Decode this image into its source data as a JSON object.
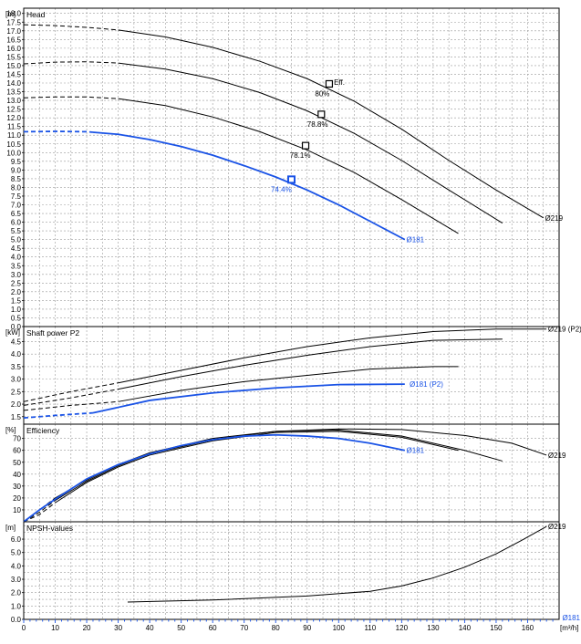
{
  "colors": {
    "curve": "#000000",
    "highlight": "#1a53e6",
    "title": "#ff0000",
    "grid": "#9a9a9a"
  },
  "chart_data": {
    "type": "line",
    "title": "",
    "x_axis": {
      "unit": "[m³/h]",
      "range": [
        0,
        170
      ],
      "ticks": [
        "0",
        "10",
        "20",
        "30",
        "40",
        "50",
        "60",
        "70",
        "80",
        "90",
        "100",
        "110",
        "120",
        "130",
        "140",
        "150",
        "160"
      ]
    },
    "panels": [
      {
        "id": "head",
        "label": "Head",
        "unit": "[m]",
        "ylim": [
          0,
          18.3
        ],
        "y_ticks": [
          "0.0",
          "0.5",
          "1.0",
          "1.5",
          "2.0",
          "2.5",
          "3.0",
          "3.5",
          "4.0",
          "4.5",
          "5.0",
          "5.5",
          "6.0",
          "6.5",
          "7.0",
          "7.5",
          "8.0",
          "8.5",
          "9.0",
          "9.5",
          "10.0",
          "10.5",
          "11.0",
          "11.5",
          "12.0",
          "12.5",
          "13.0",
          "13.5",
          "14.0",
          "14.5",
          "15.0",
          "15.5",
          "16.0",
          "16.5",
          "17.0",
          "17.5",
          "18.0"
        ],
        "series": [
          {
            "name": "Ø219",
            "highlight": false,
            "dashed_until": 30,
            "x": [
              0,
              10,
              20,
              30,
              45,
              60,
              75,
              90,
              105,
              120,
              135,
              150,
              165
            ],
            "y": [
              17.35,
              17.3,
              17.2,
              17.05,
              16.65,
              16.05,
              15.25,
              14.25,
              12.95,
              11.35,
              9.55,
              7.85,
              6.25
            ]
          },
          {
            "name": "",
            "highlight": false,
            "dashed_until": 30,
            "x": [
              0,
              10,
              20,
              30,
              45,
              60,
              75,
              90,
              105,
              120,
              135,
              152
            ],
            "y": [
              15.1,
              15.2,
              15.22,
              15.15,
              14.8,
              14.25,
              13.45,
              12.4,
              11.1,
              9.55,
              7.85,
              5.95
            ]
          },
          {
            "name": "",
            "highlight": false,
            "dashed_until": 30,
            "x": [
              0,
              10,
              20,
              30,
              45,
              60,
              75,
              90,
              105,
              120,
              138
            ],
            "y": [
              13.15,
              13.2,
              13.2,
              13.1,
              12.7,
              12.05,
              11.2,
              10.15,
              8.85,
              7.3,
              5.35
            ]
          },
          {
            "name": "Ø181",
            "highlight": true,
            "dashed_until": 22,
            "x": [
              0,
              10,
              20,
              30,
              40,
              50,
              60,
              70,
              80,
              90,
              100,
              110,
              121
            ],
            "y": [
              11.2,
              11.22,
              11.2,
              11.05,
              10.75,
              10.35,
              9.85,
              9.25,
              8.6,
              7.85,
              7.0,
              6.05,
              5.0
            ]
          }
        ],
        "markers": [
          {
            "x": 97,
            "y": 13.95,
            "highlight": false
          },
          {
            "x": 94.5,
            "y": 12.2,
            "highlight": false
          },
          {
            "x": 89.5,
            "y": 10.4,
            "highlight": false
          },
          {
            "x": 85,
            "y": 8.45,
            "highlight": true
          }
        ],
        "annotations": [
          {
            "text": "Eff.",
            "x": 98.5,
            "y": 14.05,
            "highlight": false
          },
          {
            "text": "80%",
            "x": 92.5,
            "y": 13.4,
            "highlight": false
          },
          {
            "text": "78.8%",
            "x": 90,
            "y": 11.65,
            "highlight": false
          },
          {
            "text": "78.1%",
            "x": 84.5,
            "y": 9.85,
            "highlight": false
          },
          {
            "text": "74.4%",
            "x": 78.5,
            "y": 7.9,
            "highlight": true
          },
          {
            "text": "Ø219",
            "x": 165.5,
            "y": 6.25,
            "highlight": false
          },
          {
            "text": "Ø181",
            "x": 121.5,
            "y": 5.0,
            "highlight": true
          }
        ]
      },
      {
        "id": "power",
        "label": "Shaft power P2",
        "unit": "[kW]",
        "ylim": [
          1.2,
          5.1
        ],
        "y_ticks": [
          "1.5",
          "2.0",
          "2.5",
          "3.0",
          "3.5",
          "4.0",
          "4.5"
        ],
        "series": [
          {
            "name": "Ø219 (P2)",
            "highlight": false,
            "dashed_until": 30,
            "x": [
              0,
              15,
              30,
              50,
              70,
              90,
              110,
              130,
              150,
              166
            ],
            "y": [
              2.1,
              2.5,
              2.85,
              3.35,
              3.85,
              4.3,
              4.65,
              4.9,
              5.0,
              5.0
            ]
          },
          {
            "name": "",
            "highlight": false,
            "dashed_until": 30,
            "x": [
              0,
              15,
              30,
              50,
              70,
              90,
              110,
              130,
              152
            ],
            "y": [
              1.95,
              2.25,
              2.6,
              3.1,
              3.55,
              3.95,
              4.3,
              4.55,
              4.6
            ]
          },
          {
            "name": "",
            "highlight": false,
            "dashed_until": 30,
            "x": [
              0,
              15,
              30,
              50,
              70,
              90,
              110,
              130,
              138
            ],
            "y": [
              1.75,
              1.95,
              2.1,
              2.55,
              2.9,
              3.15,
              3.4,
              3.5,
              3.5
            ]
          },
          {
            "name": "Ø181 (P2)",
            "highlight": true,
            "dashed_until": 22,
            "x": [
              0,
              10,
              22,
              40,
              60,
              80,
              100,
              121
            ],
            "y": [
              1.45,
              1.55,
              1.65,
              2.15,
              2.45,
              2.65,
              2.78,
              2.8
            ]
          }
        ],
        "annotations": [
          {
            "text": "Ø219 (P2)",
            "x": 166.5,
            "y": 5.0,
            "highlight": false
          },
          {
            "text": "Ø181 (P2)",
            "x": 122.5,
            "y": 2.8,
            "highlight": true
          }
        ]
      },
      {
        "id": "efficiency",
        "label": "Efficiency",
        "unit": "[%]",
        "ylim": [
          0,
          82
        ],
        "y_ticks": [
          "10",
          "20",
          "30",
          "40",
          "50",
          "60",
          "70"
        ],
        "series": [
          {
            "name": "Ø219",
            "highlight": false,
            "dashed_until": 10,
            "x": [
              0,
              5,
              10,
              20,
              30,
              40,
              60,
              80,
              100,
              120,
              140,
              155,
              166
            ],
            "y": [
              0,
              10,
              20,
              35,
              48,
              58,
              70,
              76,
              78,
              77.5,
              72.5,
              66,
              56
            ]
          },
          {
            "name": "",
            "highlight": false,
            "dashed_until": 10,
            "x": [
              0,
              5,
              10,
              20,
              30,
              40,
              60,
              80,
              100,
              120,
              140,
              152
            ],
            "y": [
              0,
              8,
              18,
              34,
              47,
              57,
              69,
              76,
              77,
              72,
              60,
              51
            ]
          },
          {
            "name": "",
            "highlight": false,
            "dashed_until": 10,
            "x": [
              0,
              5,
              10,
              20,
              30,
              40,
              60,
              80,
              100,
              120,
              138
            ],
            "y": [
              0,
              6,
              16,
              33,
              46,
              56,
              68,
              75,
              76,
              71,
              60
            ]
          },
          {
            "name": "Ø181",
            "highlight": true,
            "dashed_until": 0,
            "x": [
              0,
              5,
              10,
              20,
              30,
              40,
              50,
              60,
              70,
              80,
              90,
              100,
              110,
              121
            ],
            "y": [
              0,
              10,
              19,
              36,
              48,
              57,
              64,
              69,
              72,
              73,
              72,
              70,
              66,
              60
            ]
          }
        ],
        "annotations": [
          {
            "text": "Ø219",
            "x": 166.5,
            "y": 56,
            "highlight": false
          },
          {
            "text": "Ø181",
            "x": 121.5,
            "y": 60,
            "highlight": true
          }
        ]
      },
      {
        "id": "npsh",
        "label": "NPSH-values",
        "unit": "[m]",
        "ylim": [
          0,
          7.3
        ],
        "y_ticks": [
          "0.0",
          "1.0",
          "2.0",
          "3.0",
          "4.0",
          "5.0",
          "6.0"
        ],
        "y_minor": 0.5,
        "series": [
          {
            "name": "Ø219",
            "highlight": false,
            "dashed_until": 0,
            "x": [
              33,
              60,
              90,
              110,
              120,
              130,
              140,
              150,
              158,
              166
            ],
            "y": [
              1.3,
              1.45,
              1.75,
              2.1,
              2.5,
              3.1,
              3.9,
              4.9,
              5.9,
              6.95
            ]
          }
        ],
        "annotations": [
          {
            "text": "Ø219",
            "x": 166.5,
            "y": 6.95,
            "highlight": false
          },
          {
            "text": "Ø181",
            "x": 171,
            "y": 0.15,
            "highlight": true
          }
        ]
      }
    ]
  }
}
